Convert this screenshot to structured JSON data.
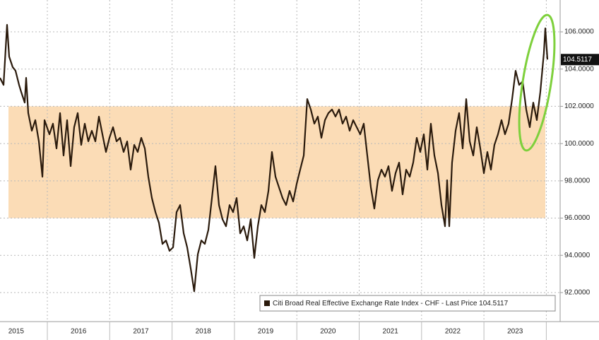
{
  "chart_data": {
    "type": "line",
    "series": [
      {
        "name": "Citi Broad Real Effective Exchange Rate Index - CHF - Last Price 104.5117",
        "color": "#2a1a0c",
        "x": [
          2015.241,
          2015.298,
          2015.354,
          2015.388,
          2015.445,
          2015.49,
          2015.547,
          2015.581,
          2015.637,
          2015.66,
          2015.694,
          2015.751,
          2015.807,
          2015.864,
          2015.921,
          2015.955,
          2016.034,
          2016.09,
          2016.147,
          2016.204,
          2016.26,
          2016.317,
          2016.374,
          2016.43,
          2016.487,
          2016.543,
          2016.6,
          2016.657,
          2016.713,
          2016.77,
          2016.827,
          2016.883,
          2016.94,
          2016.996,
          2017.053,
          2017.11,
          2017.166,
          2017.223,
          2017.28,
          2017.336,
          2017.393,
          2017.449,
          2017.506,
          2017.563,
          2017.619,
          2017.676,
          2017.733,
          2017.789,
          2017.846,
          2017.902,
          2017.959,
          2018.016,
          2018.072,
          2018.129,
          2018.186,
          2018.242,
          2018.299,
          2018.355,
          2018.412,
          2018.469,
          2018.525,
          2018.582,
          2018.639,
          2018.695,
          2018.752,
          2018.808,
          2018.865,
          2018.922,
          2018.978,
          2019.035,
          2019.092,
          2019.148,
          2019.205,
          2019.261,
          2019.318,
          2019.375,
          2019.431,
          2019.488,
          2019.545,
          2019.601,
          2019.658,
          2019.714,
          2019.771,
          2019.828,
          2019.884,
          2019.941,
          2019.998,
          2020.054,
          2020.111,
          2020.167,
          2020.224,
          2020.281,
          2020.337,
          2020.394,
          2020.451,
          2020.507,
          2020.564,
          2020.62,
          2020.677,
          2020.734,
          2020.79,
          2020.847,
          2020.904,
          2020.96,
          2021.017,
          2021.073,
          2021.13,
          2021.187,
          2021.243,
          2021.3,
          2021.357,
          2021.413,
          2021.47,
          2021.526,
          2021.583,
          2021.64,
          2021.696,
          2021.753,
          2021.81,
          2021.866,
          2021.923,
          2021.979,
          2022.036,
          2022.093,
          2022.149,
          2022.206,
          2022.263,
          2022.319,
          2022.376,
          2022.41,
          2022.444,
          2022.489,
          2022.546,
          2022.602,
          2022.659,
          2022.716,
          2022.772,
          2022.829,
          2022.885,
          2022.942,
          2022.999,
          2023.055,
          2023.112,
          2023.168,
          2023.225,
          2023.282,
          2023.338,
          2023.395,
          2023.452,
          2023.508,
          2023.565,
          2023.621,
          2023.678,
          2023.735,
          2023.791,
          2023.848,
          2023.904,
          2023.961,
          2023.984,
          2024.018
        ],
        "values": [
          103.53,
          103.15,
          106.38,
          104.67,
          104.1,
          103.91,
          103.15,
          102.77,
          102.2,
          103.53,
          101.64,
          100.69,
          101.26,
          100.12,
          98.22,
          101.26,
          100.5,
          101.07,
          99.74,
          101.64,
          99.36,
          101.26,
          98.79,
          100.88,
          101.64,
          99.93,
          101.07,
          100.12,
          100.69,
          100.12,
          101.45,
          100.5,
          99.55,
          100.31,
          100.88,
          100.12,
          100.31,
          99.55,
          100.12,
          98.6,
          99.93,
          99.55,
          100.31,
          99.74,
          98.22,
          97.08,
          96.32,
          95.75,
          94.61,
          94.8,
          94.24,
          94.43,
          96.32,
          96.7,
          95.18,
          94.43,
          93.29,
          92.07,
          94.05,
          94.8,
          94.61,
          95.37,
          97.08,
          98.79,
          96.7,
          95.94,
          95.56,
          96.7,
          96.32,
          97.08,
          95.18,
          95.56,
          94.8,
          95.94,
          93.86,
          95.56,
          96.7,
          96.32,
          97.46,
          99.55,
          98.22,
          97.65,
          97.08,
          96.7,
          97.46,
          96.89,
          97.84,
          98.6,
          99.36,
          102.39,
          101.83,
          101.07,
          101.45,
          100.31,
          101.26,
          101.64,
          101.83,
          101.45,
          101.83,
          101.07,
          101.45,
          100.69,
          101.26,
          100.88,
          100.5,
          101.07,
          99.36,
          97.65,
          96.51,
          98.03,
          98.6,
          98.22,
          98.79,
          97.46,
          98.41,
          98.98,
          97.27,
          98.6,
          98.22,
          98.98,
          100.31,
          99.55,
          100.5,
          98.6,
          101.07,
          99.36,
          98.41,
          96.7,
          95.56,
          98.03,
          95.56,
          98.98,
          100.69,
          101.64,
          99.74,
          102.39,
          100.12,
          99.36,
          100.88,
          99.74,
          98.41,
          99.55,
          98.6,
          99.93,
          100.5,
          101.26,
          100.5,
          101.07,
          102.39,
          103.91,
          103.15,
          103.34,
          101.83,
          100.88,
          102.2,
          101.26,
          102.77,
          104.86,
          106.19,
          104.5117
        ]
      }
    ],
    "xlim": [
      2015.241,
      2024.222
    ],
    "ylim": [
      90.44,
      107.71
    ],
    "xticks": [
      {
        "value": 2015.5,
        "label": "2015"
      },
      {
        "value": 2016.5,
        "label": "2016"
      },
      {
        "value": 2017.5,
        "label": "2017"
      },
      {
        "value": 2018.5,
        "label": "2018"
      },
      {
        "value": 2019.5,
        "label": "2019"
      },
      {
        "value": 2020.5,
        "label": "2020"
      },
      {
        "value": 2021.5,
        "label": "2021"
      },
      {
        "value": 2022.5,
        "label": "2022"
      },
      {
        "value": 2023.5,
        "label": "2023"
      }
    ],
    "xgrid": [
      2016,
      2017,
      2018,
      2019,
      2020,
      2021,
      2022,
      2023,
      2024
    ],
    "yticks": [
      {
        "value": 92,
        "label": "92.0000"
      },
      {
        "value": 94,
        "label": "94.0000"
      },
      {
        "value": 96,
        "label": "96.0000"
      },
      {
        "value": 98,
        "label": "98.0000"
      },
      {
        "value": 100,
        "label": "100.0000"
      },
      {
        "value": 102,
        "label": "102.0000"
      },
      {
        "value": 104,
        "label": "104.0000"
      },
      {
        "value": 106,
        "label": "106.0000"
      }
    ],
    "band": [
      96,
      102
    ],
    "band_color": "#fbdcb6",
    "last_price": 104.5117,
    "grid": true,
    "legend": "lower right"
  }
}
